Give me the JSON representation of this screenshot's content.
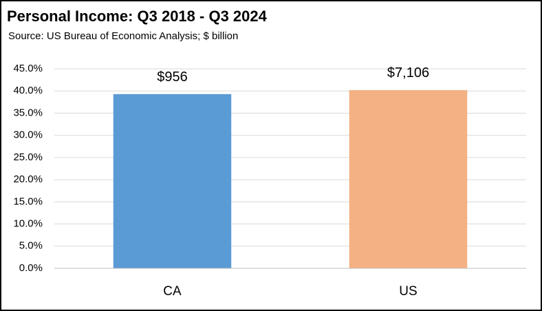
{
  "chart_data": {
    "type": "bar",
    "title": "Personal Income:  Q3 2018 - Q3 2024",
    "subtitle": "Source:  US Bureau of Economic Analysis; $ billion",
    "categories": [
      "CA",
      "US"
    ],
    "values": [
      39.3,
      40.2
    ],
    "bar_labels": [
      "$956",
      "$7,106"
    ],
    "colors": [
      "#5b9bd5",
      "#f4b183"
    ],
    "ylim": [
      0,
      45
    ],
    "yticks": [
      {
        "value": 0,
        "label": "0.0%"
      },
      {
        "value": 5,
        "label": "5.0%"
      },
      {
        "value": 10,
        "label": "10.0%"
      },
      {
        "value": 15,
        "label": "15.0%"
      },
      {
        "value": 20,
        "label": "20.0%"
      },
      {
        "value": 25,
        "label": "25.0%"
      },
      {
        "value": 30,
        "label": "30.0%"
      },
      {
        "value": 35,
        "label": "35.0%"
      },
      {
        "value": 40,
        "label": "40.0%"
      },
      {
        "value": 45,
        "label": "45.0%"
      }
    ],
    "grid": true
  }
}
